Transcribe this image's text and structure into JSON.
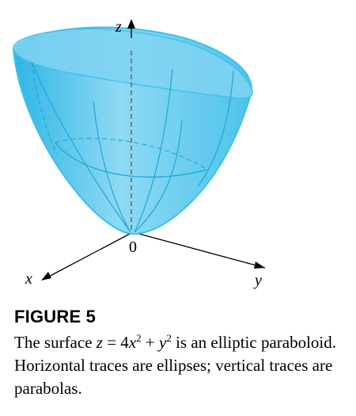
{
  "figure": {
    "axes": {
      "z": "z",
      "x": "x",
      "y": "y",
      "origin": "0"
    },
    "colors": {
      "surface": "#33bde8",
      "surface_fill": "#8fd8f2",
      "rim": "#3cc0ea",
      "lines": "#1aa8d8",
      "axis": "#000000"
    }
  },
  "caption": {
    "title": "FIGURE 5",
    "text_pre": "The surface ",
    "eq_var": "z",
    "eq_mid": " = 4",
    "eq_x": "x",
    "eq_exp1": "2",
    "eq_plus": " + ",
    "eq_y": "y",
    "eq_exp2": "2",
    "text_post": " is an elliptic paraboloid. Horizontal traces are ellipses; vertical traces are parabolas."
  }
}
